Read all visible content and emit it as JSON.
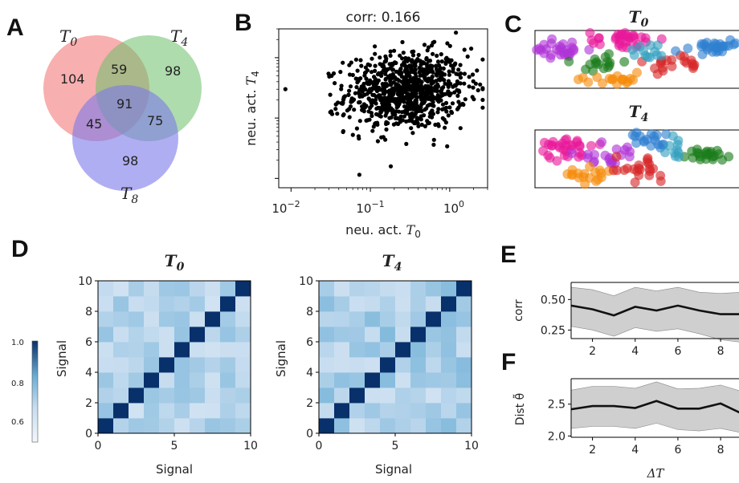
{
  "panels": {
    "A": "A",
    "B": "B",
    "C": "C",
    "D": "D",
    "E": "E",
    "F": "F"
  },
  "venn": {
    "sets": [
      {
        "label": "T",
        "sub": "0",
        "color": "#f26d6d"
      },
      {
        "label": "T",
        "sub": "4",
        "color": "#6cbf6a"
      },
      {
        "label": "T",
        "sub": "8",
        "color": "#7b78ea"
      }
    ],
    "regions": {
      "only_T0": "104",
      "only_T4": "98",
      "only_T8": "98",
      "T0_T4": "59",
      "T0_T8": "45",
      "T4_T8": "75",
      "all": "91"
    }
  },
  "chart_data": [
    {
      "panel": "B",
      "type": "scatter",
      "title": "corr: 0.166",
      "xlabel": "neu. act. T0",
      "ylabel": "neu. act. T4",
      "xscale": "log",
      "yscale": "log",
      "xlim": [
        0.007,
        3.0
      ],
      "ylim": [
        0.007,
        3.0
      ],
      "xticks": [
        "10^-2",
        "10^-1",
        "10^0"
      ],
      "n_points": 900,
      "point_color": "#000000",
      "legend": "none"
    },
    {
      "panel": "C",
      "type": "scatter",
      "titles": [
        "T0",
        "T4"
      ],
      "axes": "none",
      "cluster_colors": [
        "#e8199a",
        "#b033d6",
        "#2f7fd1",
        "#1b7d1b",
        "#f58a0a",
        "#d62728",
        "#33a0c0"
      ]
    },
    {
      "panel": "D",
      "type": "heatmap",
      "titles": [
        "T0",
        "T4"
      ],
      "xlabel": "Signal",
      "ylabel": "Signal",
      "size": 10,
      "xticks": [
        "0",
        "5",
        "10"
      ],
      "yticks": [
        "0",
        "2",
        "4",
        "6",
        "8",
        "10"
      ],
      "colorbar": {
        "min": 0.55,
        "max": 1.0,
        "ticks": [
          "0.6",
          "0.8",
          "1.0"
        ]
      },
      "colormap": "Blues",
      "diagonal": 1.0
    },
    {
      "panel": "E",
      "type": "line",
      "ylabel": "corr",
      "x": [
        1,
        2,
        3,
        4,
        5,
        6,
        7,
        8,
        9
      ],
      "y": [
        0.45,
        0.42,
        0.37,
        0.44,
        0.41,
        0.45,
        0.41,
        0.38,
        0.38
      ],
      "band_low": [
        0.28,
        0.25,
        0.2,
        0.27,
        0.24,
        0.26,
        0.22,
        0.17,
        0.15
      ],
      "band_high": [
        0.6,
        0.58,
        0.53,
        0.6,
        0.57,
        0.6,
        0.56,
        0.55,
        0.56
      ],
      "ylim": [
        0.18,
        0.64
      ],
      "yticks": [
        "0.25",
        "0.50"
      ],
      "xticks": [
        "2",
        "4",
        "6",
        "8"
      ]
    },
    {
      "panel": "F",
      "type": "line",
      "ylabel": "Dist θ̃",
      "xlabel": "ΔT",
      "x": [
        1,
        2,
        3,
        4,
        5,
        6,
        7,
        8,
        9
      ],
      "y": [
        2.42,
        2.47,
        2.47,
        2.44,
        2.55,
        2.43,
        2.43,
        2.51,
        2.35
      ],
      "band_low": [
        2.12,
        2.15,
        2.15,
        2.12,
        2.2,
        2.1,
        2.08,
        2.12,
        2.05
      ],
      "band_high": [
        2.72,
        2.78,
        2.78,
        2.75,
        2.85,
        2.74,
        2.75,
        2.8,
        2.7
      ],
      "ylim": [
        1.98,
        2.9
      ],
      "yticks": [
        "2.0",
        "2.5"
      ],
      "xticks": [
        "2",
        "4",
        "6",
        "8"
      ]
    }
  ]
}
